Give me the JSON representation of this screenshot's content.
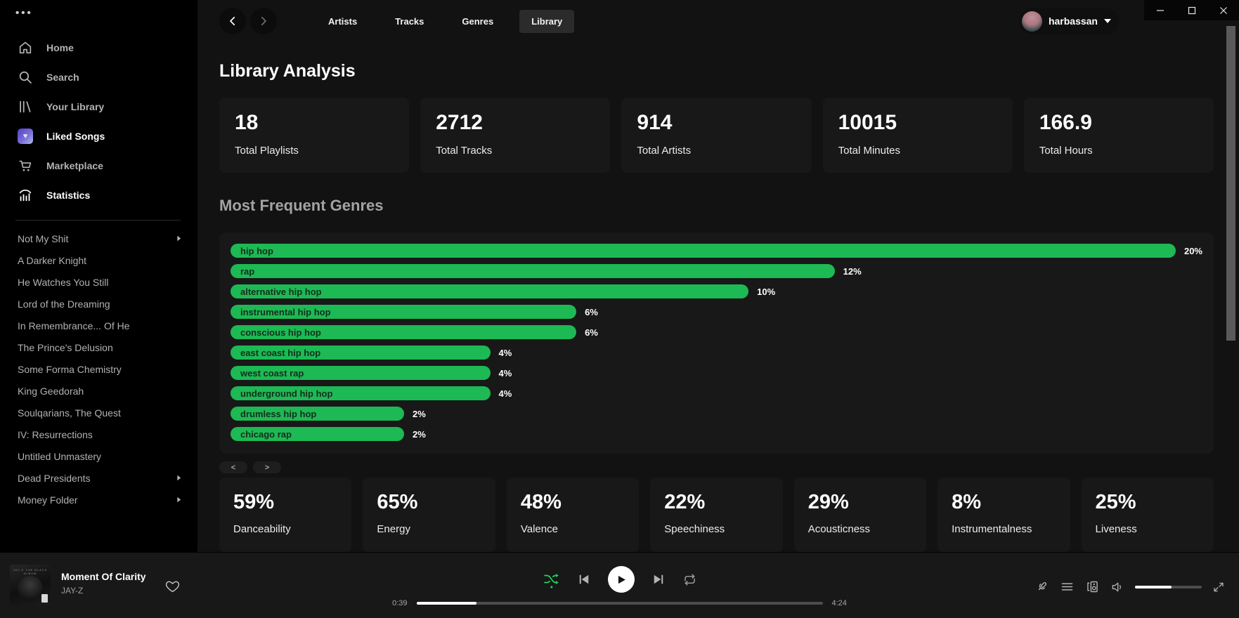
{
  "colors": {
    "accent_green": "#1db954",
    "shuffle_green": "#1ed760",
    "background": "#121212",
    "sidebar_background": "#000000",
    "card_background": "#181818"
  },
  "window": {
    "controls": [
      {
        "icon": "minimize-icon",
        "label": "minimize"
      },
      {
        "icon": "maximize-icon",
        "label": "maximize"
      },
      {
        "icon": "close-icon",
        "label": "close"
      }
    ]
  },
  "sidebar": {
    "nav": [
      {
        "label": "Home",
        "icon": "home-icon",
        "active": false,
        "emph": false
      },
      {
        "label": "Search",
        "icon": "search-icon",
        "active": false,
        "emph": false
      },
      {
        "label": "Your Library",
        "icon": "library-icon",
        "active": false,
        "emph": false
      },
      {
        "label": "Liked Songs",
        "icon": "liked-heart-icon",
        "active": false,
        "emph": true
      },
      {
        "label": "Marketplace",
        "icon": "cart-icon",
        "active": false,
        "emph": false
      },
      {
        "label": "Statistics",
        "icon": "stats-icon",
        "active": true,
        "emph": false
      }
    ],
    "playlists": [
      {
        "label": "Not My Shit",
        "has_submenu": true
      },
      {
        "label": "A Darker Knight",
        "has_submenu": false
      },
      {
        "label": "He Watches You Still",
        "has_submenu": false
      },
      {
        "label": "Lord of the Dreaming",
        "has_submenu": false
      },
      {
        "label": "In Remembrance... Of He",
        "has_submenu": false
      },
      {
        "label": "The Prince's Delusion",
        "has_submenu": false
      },
      {
        "label": "Some Forma Chemistry",
        "has_submenu": false
      },
      {
        "label": "King Geedorah",
        "has_submenu": false
      },
      {
        "label": "Soulqarians, The Quest",
        "has_submenu": false
      },
      {
        "label": "IV: Resurrections",
        "has_submenu": false
      },
      {
        "label": "Untitled Unmastery",
        "has_submenu": false
      },
      {
        "label": "Dead Presidents",
        "has_submenu": true
      },
      {
        "label": "Money Folder",
        "has_submenu": true
      }
    ]
  },
  "topbar": {
    "tabs": [
      {
        "label": "Artists",
        "active": false
      },
      {
        "label": "Tracks",
        "active": false
      },
      {
        "label": "Genres",
        "active": false
      },
      {
        "label": "Library",
        "active": true
      }
    ],
    "user": {
      "name": "harbassan",
      "icon": "caret-down-icon"
    }
  },
  "page": {
    "title": "Library Analysis",
    "stats": [
      {
        "value": "18",
        "label": "Total Playlists"
      },
      {
        "value": "2712",
        "label": "Total Tracks"
      },
      {
        "value": "914",
        "label": "Total Artists"
      },
      {
        "value": "10015",
        "label": "Total Minutes"
      },
      {
        "value": "166.9",
        "label": "Total Hours"
      }
    ],
    "genres_heading": "Most Frequent Genres",
    "chart_data": {
      "type": "bar",
      "orientation": "horizontal",
      "title": "Most Frequent Genres",
      "categories": [
        "hip hop",
        "rap",
        "alternative hip hop",
        "instrumental hip hop",
        "conscious hip hop",
        "east coast hip hop",
        "west coast rap",
        "underground hip hop",
        "drumless hip hop",
        "chicago rap"
      ],
      "values": [
        20,
        12,
        10,
        6,
        6,
        4,
        4,
        4,
        2,
        2
      ],
      "unit": "%",
      "xlim": [
        0,
        20
      ],
      "bar_color": "#1db954",
      "value_labels": [
        "20%",
        "12%",
        "10%",
        "6%",
        "6%",
        "4%",
        "4%",
        "4%",
        "2%",
        "2%"
      ],
      "grid": false,
      "legend": false
    },
    "pagination": {
      "prev": "<",
      "next": ">"
    },
    "audio_features": [
      {
        "value": "59%",
        "label": "Danceability"
      },
      {
        "value": "65%",
        "label": "Energy"
      },
      {
        "value": "48%",
        "label": "Valence"
      },
      {
        "value": "22%",
        "label": "Speechiness"
      },
      {
        "value": "29%",
        "label": "Acousticness"
      },
      {
        "value": "8%",
        "label": "Instrumentalness"
      },
      {
        "value": "25%",
        "label": "Liveness"
      }
    ]
  },
  "player": {
    "track": {
      "title": "Moment Of Clarity",
      "artist": "JAY-Z"
    },
    "elapsed": "0:39",
    "duration": "4:24",
    "progress_pct": 14.8,
    "volume_pct": 55,
    "shuffle_active": true,
    "icons": [
      "heart-icon",
      "shuffle-icon",
      "previous-icon",
      "play-icon",
      "next-icon",
      "repeat-icon",
      "microphone-icon",
      "queue-icon",
      "devices-icon",
      "volume-icon",
      "fullscreen-icon"
    ]
  }
}
